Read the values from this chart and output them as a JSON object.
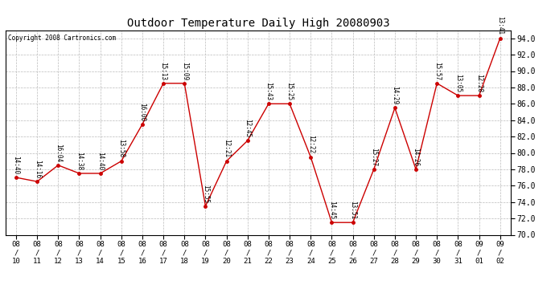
{
  "title": "Outdoor Temperature Daily High 20080903",
  "copyright": "Copyright 2008 Cartronics.com",
  "dates": [
    "08/10",
    "08/11",
    "08/12",
    "08/13",
    "08/14",
    "08/15",
    "08/16",
    "08/17",
    "08/18",
    "08/19",
    "08/20",
    "08/21",
    "08/22",
    "08/23",
    "08/24",
    "08/25",
    "08/26",
    "08/27",
    "08/28",
    "08/29",
    "08/30",
    "08/31",
    "09/01",
    "09/02"
  ],
  "dates_stacked": [
    "08\n/\n10",
    "08\n/\n11",
    "08\n/\n12",
    "08\n/\n13",
    "08\n/\n14",
    "08\n/\n15",
    "08\n/\n16",
    "08\n/\n17",
    "08\n/\n18",
    "08\n/\n19",
    "08\n/\n20",
    "08\n/\n21",
    "08\n/\n22",
    "08\n/\n23",
    "08\n/\n24",
    "08\n/\n25",
    "08\n/\n26",
    "08\n/\n27",
    "08\n/\n28",
    "08\n/\n29",
    "08\n/\n30",
    "08\n/\n31",
    "09\n/\n01",
    "09\n/\n02"
  ],
  "values": [
    77.0,
    76.5,
    78.5,
    77.5,
    77.5,
    79.0,
    83.5,
    88.5,
    88.5,
    73.5,
    79.0,
    81.5,
    86.0,
    86.0,
    79.5,
    71.5,
    71.5,
    78.0,
    85.5,
    78.0,
    88.5,
    87.0,
    87.0,
    94.0
  ],
  "labels": [
    "14:40",
    "14:16",
    "16:04",
    "14:38",
    "14:40",
    "13:58",
    "16:00",
    "15:13",
    "15:09",
    "15:55",
    "12:21",
    "12:45",
    "15:43",
    "15:25",
    "12:22",
    "14:45",
    "13:51",
    "15:27",
    "14:29",
    "14:26",
    "15:57",
    "13:05",
    "12:28",
    "13:41"
  ],
  "ylim_min": 70.0,
  "ylim_max": 95.0,
  "yticks": [
    70.0,
    72.0,
    74.0,
    76.0,
    78.0,
    80.0,
    82.0,
    84.0,
    86.0,
    88.0,
    90.0,
    92.0,
    94.0
  ],
  "line_color": "#cc0000",
  "bg_color": "#ffffff",
  "grid_color": "#bbbbbb",
  "label_fontsize": 5.5,
  "title_fontsize": 10,
  "xtick_fontsize": 6.5,
  "ytick_fontsize": 7
}
